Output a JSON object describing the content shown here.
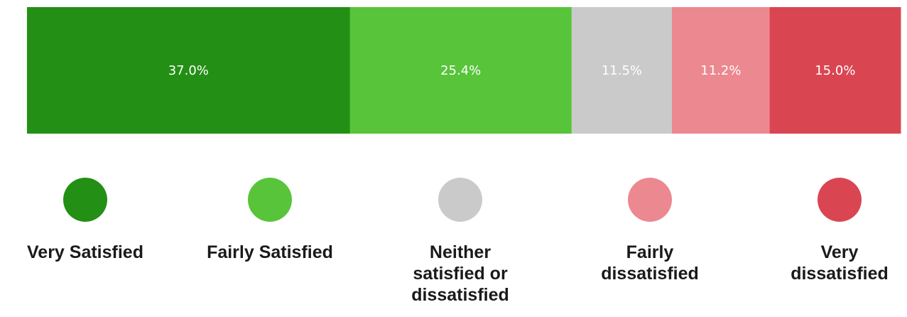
{
  "chart_data": {
    "type": "bar",
    "orientation": "horizontal-stacked",
    "categories": [
      "Very Satisfied",
      "Fairly Satisfied",
      "Neither satisfied or dissatisfied",
      "Fairly dissatisfied",
      "Very dissatisfied"
    ],
    "values": [
      37.0,
      25.4,
      11.5,
      11.2,
      15.0
    ],
    "value_labels": [
      "37.0%",
      "25.4%",
      "11.5%",
      "11.2%",
      "15.0%"
    ],
    "colors": [
      "#238f14",
      "#57c43a",
      "#cacaca",
      "#ec8890",
      "#d94652"
    ],
    "legend": {
      "placement": "bottom",
      "entries": [
        {
          "label": "Very Satisfied",
          "color": "#238f14"
        },
        {
          "label": "Fairly Satisfied",
          "color": "#57c43a"
        },
        {
          "label": "Neither\nsatisfied or\ndissatisfied",
          "color": "#cacaca"
        },
        {
          "label": "Fairly\ndissatisfied",
          "color": "#ec8890"
        },
        {
          "label": "Very\ndissatisfied",
          "color": "#d94652"
        }
      ]
    },
    "unit": "%",
    "grid": false
  }
}
